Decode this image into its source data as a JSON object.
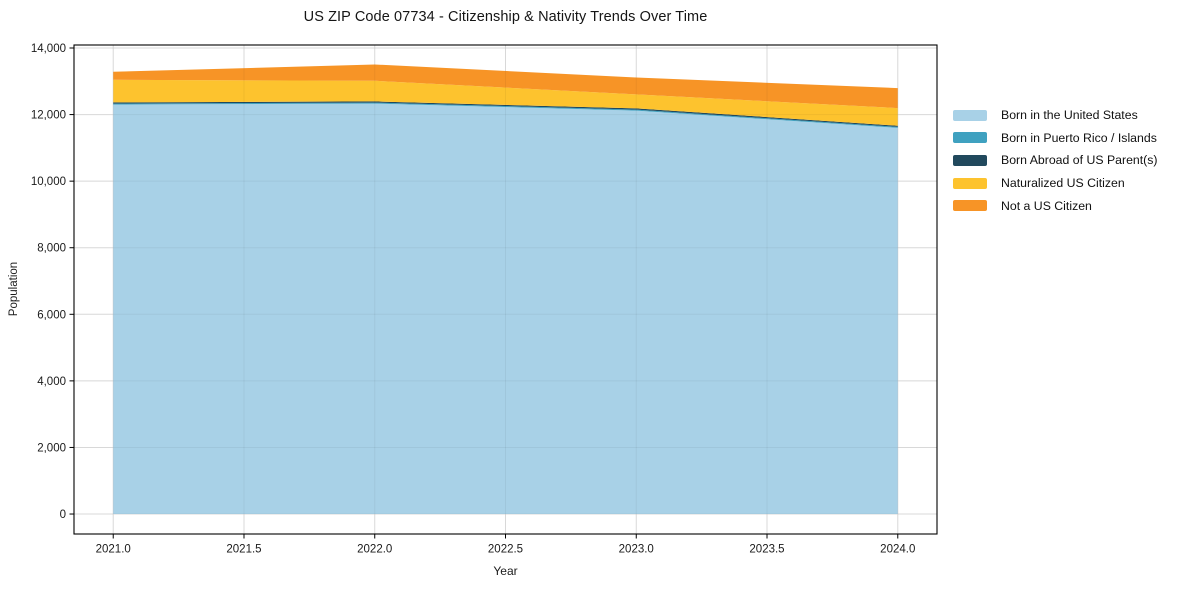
{
  "figure": {
    "title": "US ZIP Code 07734 - Citizenship & Nativity Trends Over Time"
  },
  "chart_data": {
    "type": "area",
    "stacked": true,
    "title": "US ZIP Code 07734 - Citizenship & Nativity Trends Over Time",
    "xlabel": "Year",
    "ylabel": "Population",
    "x": [
      2021,
      2022,
      2023,
      2024
    ],
    "series": [
      {
        "name": "Born in the United States",
        "color": "#a8d1e7",
        "values": [
          12300,
          12330,
          12120,
          11600
        ]
      },
      {
        "name": "Born in Puerto Rico / Islands",
        "color": "#3fa1c0",
        "values": [
          30,
          30,
          30,
          30
        ]
      },
      {
        "name": "Born Abroad of US Parent(s)",
        "color": "#21495d",
        "values": [
          35,
          35,
          35,
          35
        ]
      },
      {
        "name": "Naturalized US Citizen",
        "color": "#fdc32e",
        "values": [
          680,
          620,
          420,
          530
        ]
      },
      {
        "name": "Not a US Citizen",
        "color": "#f79426",
        "values": [
          240,
          490,
          510,
          600
        ]
      }
    ],
    "stack_totals": [
      13285,
      13505,
      13115,
      12795
    ],
    "xlim": [
      2020.85,
      2024.15
    ],
    "ylim": [
      -600,
      14090
    ],
    "x_ticks": [
      2021.0,
      2021.5,
      2022.0,
      2022.5,
      2023.0,
      2023.5,
      2024.0
    ],
    "x_tick_labels": [
      "2021.0",
      "2021.5",
      "2022.0",
      "2022.5",
      "2023.0",
      "2023.5",
      "2024.0"
    ],
    "y_ticks": [
      0,
      2000,
      4000,
      6000,
      8000,
      10000,
      12000,
      14000
    ],
    "y_tick_labels": [
      "0",
      "2,000",
      "4,000",
      "6,000",
      "8,000",
      "10,000",
      "12,000",
      "14,000"
    ],
    "grid": true,
    "legend_position": "right-outside",
    "colors": {
      "grid": "#e4e4e4",
      "spine": "#000000",
      "background": "#ffffff",
      "tick_text": "#1a1a1a"
    }
  }
}
